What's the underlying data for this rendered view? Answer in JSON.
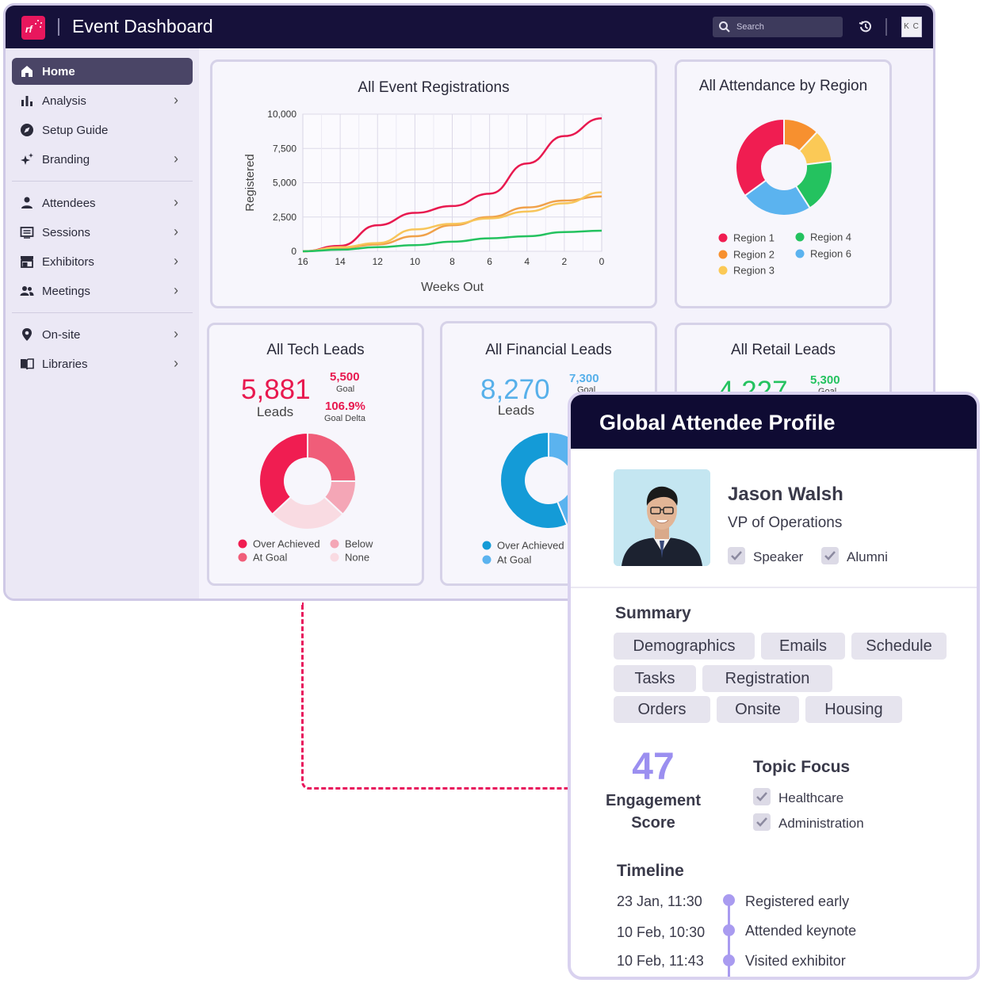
{
  "header": {
    "logo_text": "rf",
    "title": "Event Dashboard",
    "search_placeholder": "Search",
    "user_initials": "K C"
  },
  "sidebar": {
    "items": [
      {
        "label": "Home",
        "active": true,
        "icon": "home-icon"
      },
      {
        "label": "Analysis",
        "icon": "bar-chart-icon",
        "chevron": true
      },
      {
        "label": "Setup Guide",
        "icon": "compass-icon"
      },
      {
        "label": "Branding",
        "icon": "sparkle-icon",
        "chevron": true
      },
      {
        "label": "Attendees",
        "icon": "person-icon",
        "chevron": true
      },
      {
        "label": "Sessions",
        "icon": "sessions-icon",
        "chevron": true
      },
      {
        "label": "Exhibitors",
        "icon": "storefront-icon",
        "chevron": true
      },
      {
        "label": "Meetings",
        "icon": "people-icon",
        "chevron": true
      },
      {
        "label": "On-site",
        "icon": "location-pin-icon",
        "chevron": true
      },
      {
        "label": "Libraries",
        "icon": "book-icon",
        "chevron": true
      }
    ],
    "chevron": "›"
  },
  "registrations": {
    "title": "All Event Registrations",
    "chart_data": {
      "type": "line",
      "title": "All Event Registrations",
      "xlabel": "Weeks Out",
      "ylabel": "Registered",
      "x": [
        16,
        14,
        12,
        10,
        8,
        6,
        4,
        2,
        0
      ],
      "xlim": [
        16,
        0
      ],
      "ylim": [
        0,
        10000
      ],
      "yticks": [
        "10,000",
        "7,500",
        "5,000",
        "2,500",
        "0"
      ],
      "xticks": [
        "16",
        "14",
        "12",
        "10",
        "8",
        "6",
        "4",
        "2",
        "0"
      ],
      "grid": true,
      "series": [
        {
          "color": "#e8194f",
          "values": [
            0,
            400,
            1900,
            2800,
            3300,
            4200,
            6400,
            8400,
            9700
          ]
        },
        {
          "color": "#f0a14a",
          "values": [
            0,
            250,
            500,
            1100,
            1900,
            2500,
            3200,
            3700,
            4000
          ]
        },
        {
          "color": "#f7c55a",
          "values": [
            0,
            300,
            600,
            1600,
            2000,
            2400,
            2900,
            3500,
            4300
          ]
        },
        {
          "color": "#24c25f",
          "values": [
            0,
            120,
            300,
            450,
            700,
            950,
            1100,
            1400,
            1500
          ]
        }
      ]
    }
  },
  "region": {
    "title": "All Attendance by Region",
    "chart_data": {
      "type": "pie",
      "title": "All Attendance by Region",
      "categories": [
        "Region 1",
        "Region 2",
        "Region 3",
        "Region 4",
        "Region 6"
      ],
      "values": [
        35,
        12,
        11,
        18,
        24
      ],
      "order": [
        "Region 2",
        "Region 3",
        "Region 4",
        "Region 6",
        "Region 1"
      ],
      "colors": [
        "#f01d51",
        "#f7902f",
        "#fbc956",
        "#24c25f",
        "#5bb3ef"
      ],
      "legend": "bottom"
    }
  },
  "tech": {
    "title": "All Tech Leads",
    "value": "5,881",
    "value_label": "Leads",
    "goal": "5,500",
    "goal_label": "Goal",
    "delta": "106.9%",
    "delta_label": "Goal Delta",
    "color": "#e8194f",
    "chart_data": {
      "type": "pie",
      "title": "All Tech Leads",
      "categories": [
        "At Goal",
        "Below",
        "None",
        "Over Achieved"
      ],
      "values": [
        25,
        12,
        26,
        37
      ],
      "colors": [
        "#f05d79",
        "#f4a6b6",
        "#f9dbe2",
        "#f01d51"
      ],
      "legend_labels": [
        "Over Achieved",
        "At Goal",
        "Below",
        "None"
      ],
      "legend_colors": [
        "#f01d51",
        "#f05d79",
        "#f4a6b6",
        "#f9dbe2"
      ]
    }
  },
  "financial": {
    "title": "All Financial Leads",
    "value": "8,270",
    "value_label": "Leads",
    "goal": "7,300",
    "goal_label": "Goal",
    "color": "#57b0ea",
    "chart_data": {
      "type": "pie",
      "title": "All Financial Leads",
      "categories": [
        "At Goal",
        "Over Achieved"
      ],
      "values": [
        35,
        45
      ],
      "colors": [
        "#5bb3ef",
        "#149bd7"
      ],
      "legend_labels": [
        "Over Achieved",
        "At Goal"
      ],
      "legend_colors": [
        "#149bd7",
        "#5bb3ef"
      ]
    }
  },
  "retail": {
    "title": "All Retail Leads",
    "value": "4,227",
    "goal": "5,300",
    "goal_label": "Goal",
    "color": "#24c25f"
  },
  "profile": {
    "title": "Global Attendee Profile",
    "name": "Jason Walsh",
    "role": "VP of Operations",
    "tags": [
      "Speaker",
      "Alumni"
    ],
    "summary_title": "Summary",
    "summary_pills": [
      "Demographics",
      "Emails",
      "Schedule",
      "Tasks",
      "Registration",
      "Orders",
      "Onsite",
      "Housing"
    ],
    "score": "47",
    "score_label_1": "Engagement",
    "score_label_2": "Score",
    "topic_title": "Topic Focus",
    "topics": [
      "Healthcare",
      "Administration"
    ],
    "timeline_title": "Timeline",
    "timeline": [
      {
        "time": "23 Jan, 11:30",
        "event": "Registered early"
      },
      {
        "time": "10 Feb, 10:30",
        "event": "Attended keynote"
      },
      {
        "time": "10 Feb, 11:43",
        "event": "Visited exhibitor"
      }
    ]
  }
}
